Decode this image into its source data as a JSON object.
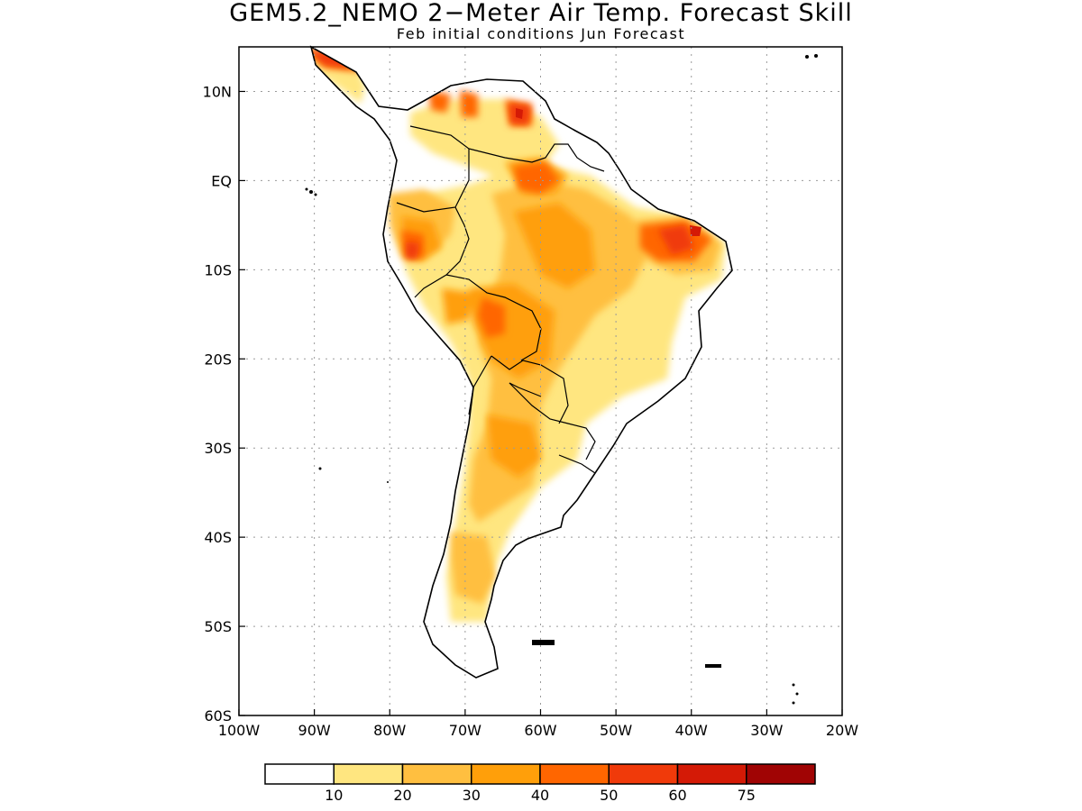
{
  "title": "GEM5.2_NEMO 2−Meter Air Temp. Forecast Skill",
  "subtitle": "Feb initial conditions  Jun Forecast",
  "map": {
    "region": "South America",
    "lon_range": [
      -100,
      -20
    ],
    "lat_range": [
      -60,
      15
    ],
    "lon_ticks": [
      -100,
      -90,
      -80,
      -70,
      -60,
      -50,
      -40,
      -30,
      -20
    ],
    "lon_tick_labels": [
      "100W",
      "90W",
      "80W",
      "70W",
      "60W",
      "50W",
      "40W",
      "30W",
      "20W"
    ],
    "lat_ticks": [
      10,
      0,
      -10,
      -20,
      -30,
      -40,
      -50,
      -60
    ],
    "lat_tick_labels": [
      "10N",
      "EQ",
      "10S",
      "20S",
      "30S",
      "40S",
      "50S",
      "60S"
    ],
    "gridlines": "dotted"
  },
  "colorbar": {
    "colors": [
      "#ffffff",
      "#ffe680",
      "#ffbf40",
      "#ff9f0a",
      "#ff6600",
      "#f03a0a",
      "#d41a06",
      "#a00404"
    ],
    "boundaries": [
      "10",
      "20",
      "30",
      "40",
      "50",
      "60",
      "75"
    ]
  }
}
